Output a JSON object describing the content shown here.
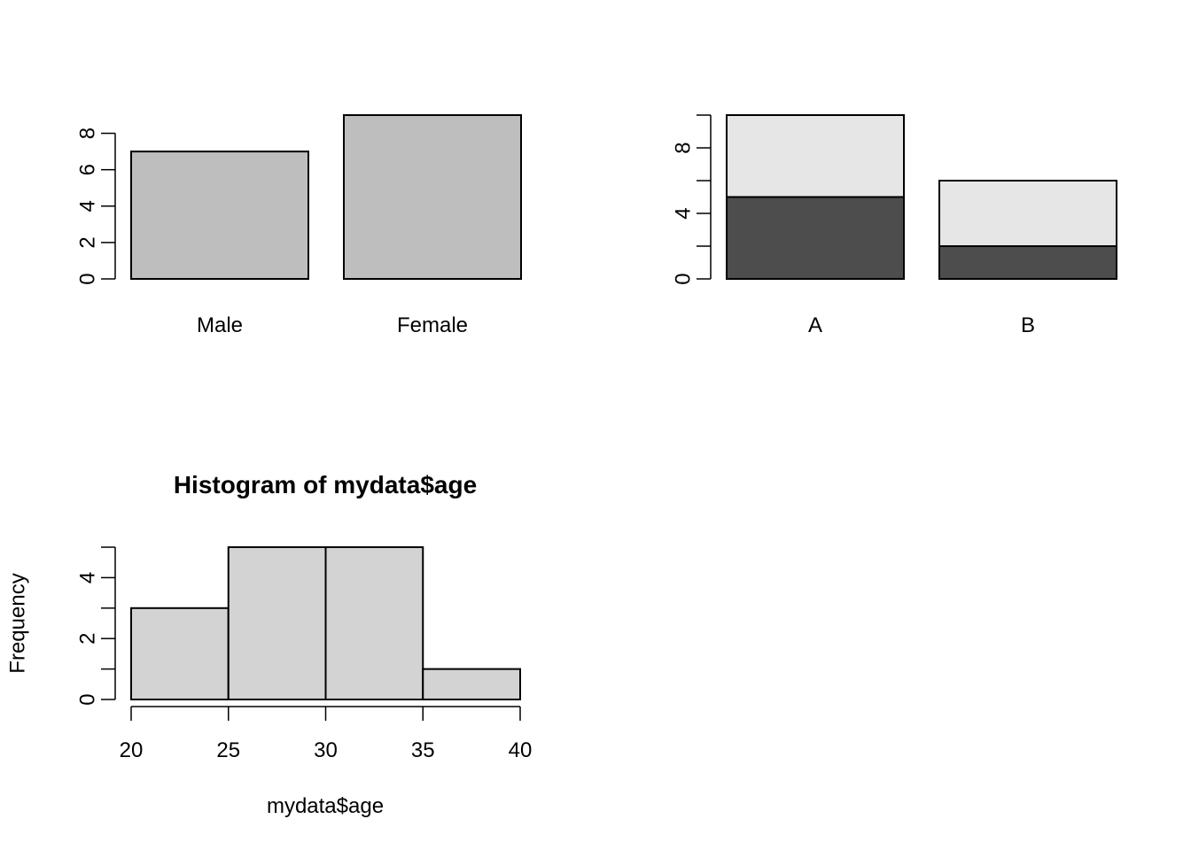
{
  "chart_data": [
    {
      "type": "bar",
      "categories": [
        "Male",
        "Female"
      ],
      "values": [
        7,
        9
      ],
      "title": "",
      "xlabel": "",
      "ylabel": "",
      "ylim": [
        0,
        9
      ],
      "yticks": [
        0,
        2,
        4,
        6,
        8
      ],
      "bar_color": "#BEBEBE"
    },
    {
      "type": "bar",
      "stacked": true,
      "categories": [
        "A",
        "B"
      ],
      "series": [
        {
          "values": [
            5,
            2
          ],
          "color": "#4D4D4D"
        },
        {
          "values": [
            5,
            4
          ],
          "color": "#E6E6E6"
        }
      ],
      "title": "",
      "xlabel": "",
      "ylabel": "",
      "ylim": [
        0,
        10
      ],
      "yticks": [
        0,
        2,
        4,
        6,
        8,
        10
      ],
      "ytick_labels": [
        "0",
        "",
        "4",
        "",
        "8",
        ""
      ]
    },
    {
      "type": "bar",
      "histogram": true,
      "bins": [
        [
          20,
          25
        ],
        [
          25,
          30
        ],
        [
          30,
          35
        ],
        [
          35,
          40
        ]
      ],
      "values": [
        3,
        5,
        5,
        1
      ],
      "title": "Histogram of mydata$age",
      "xlabel": "mydata$age",
      "ylabel": "Frequency",
      "xlim": [
        20,
        40
      ],
      "xticks": [
        20,
        25,
        30,
        35,
        40
      ],
      "ylim": [
        0,
        5
      ],
      "yticks": [
        0,
        1,
        2,
        3,
        4,
        5
      ],
      "ytick_labels": [
        "0",
        "",
        "2",
        "",
        "4",
        ""
      ],
      "bar_color": "#D3D3D3"
    }
  ]
}
